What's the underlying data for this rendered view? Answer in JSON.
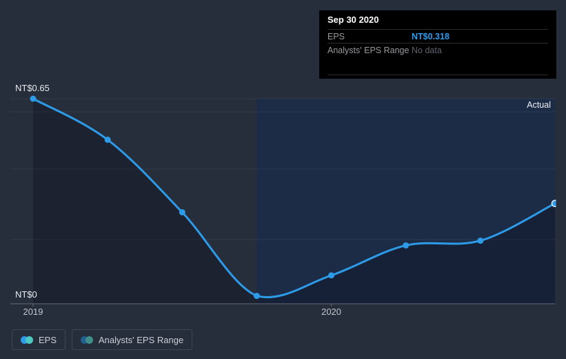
{
  "tooltip": {
    "date": "Sep 30 2020",
    "rows": [
      {
        "label": "EPS",
        "value": "NT$0.318"
      },
      {
        "label": "Analysts' EPS Range",
        "value": "No data"
      }
    ]
  },
  "legend": {
    "items": [
      {
        "label": "EPS",
        "colors": [
          "#2e9ce9",
          "#4ec9c0"
        ]
      },
      {
        "label": "Analysts' EPS Range",
        "colors": [
          "#21618f",
          "#418e8a"
        ]
      }
    ]
  },
  "chart_data": {
    "type": "line",
    "title": "",
    "xlabel": "",
    "ylabel": "",
    "ylim": [
      0,
      0.65
    ],
    "y_tick_labels": [
      "NT$0",
      "NT$0.65"
    ],
    "x_tick_labels": [
      "2019",
      "2020"
    ],
    "x_tick_indices": [
      0,
      4
    ],
    "grid": true,
    "legend_position": "bottom",
    "series": [
      {
        "name": "EPS",
        "color": "#2d9be8",
        "values": [
          0.65,
          0.52,
          0.29,
          0.025,
          0.09,
          0.185,
          0.2,
          0.318
        ]
      },
      {
        "name": "Analysts' EPS Range",
        "color": "#3a7f96",
        "values": []
      }
    ],
    "annotations": [
      {
        "text": "Actual",
        "region_start_index": 3
      }
    ],
    "highlight_index": 7
  }
}
